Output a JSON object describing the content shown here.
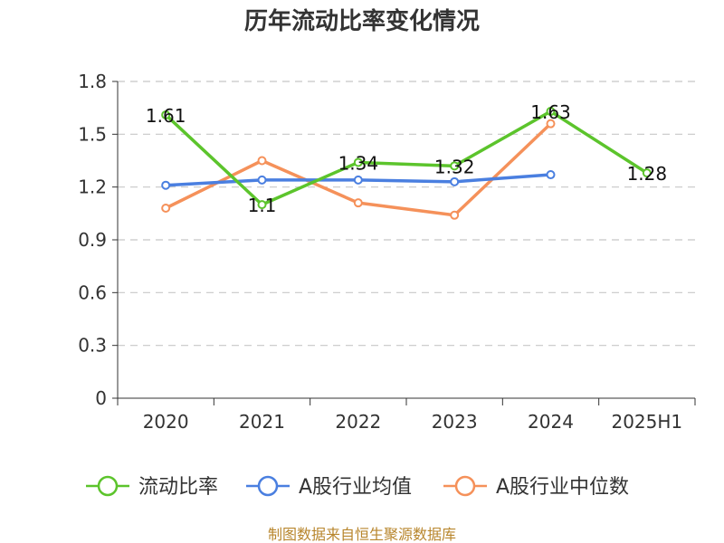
{
  "chart_data": {
    "type": "line",
    "title": "历年流动比率变化情况",
    "categories": [
      "2020",
      "2021",
      "2022",
      "2023",
      "2024",
      "2025H1"
    ],
    "ylim": [
      0,
      1.8
    ],
    "yticks": [
      "0",
      "0.3",
      "0.6",
      "0.9",
      "1.2",
      "1.5",
      "1.8"
    ],
    "grid": true,
    "legend_position": "bottom",
    "series": [
      {
        "name": "流动比率",
        "color": "#5cc42c",
        "values": [
          1.61,
          1.1,
          1.34,
          1.32,
          1.63,
          1.28
        ],
        "labels": [
          "1.61",
          "1.1",
          "1.34",
          "1.32",
          "1.63",
          "1.28"
        ]
      },
      {
        "name": "A股行业均值",
        "color": "#4a7fe0",
        "values": [
          1.21,
          1.24,
          1.24,
          1.23,
          1.27,
          null
        ]
      },
      {
        "name": "A股行业中位数",
        "color": "#f5915a",
        "values": [
          1.08,
          1.35,
          1.11,
          1.04,
          1.56,
          null
        ]
      }
    ]
  },
  "source": "制图数据来自恒生聚源数据库"
}
